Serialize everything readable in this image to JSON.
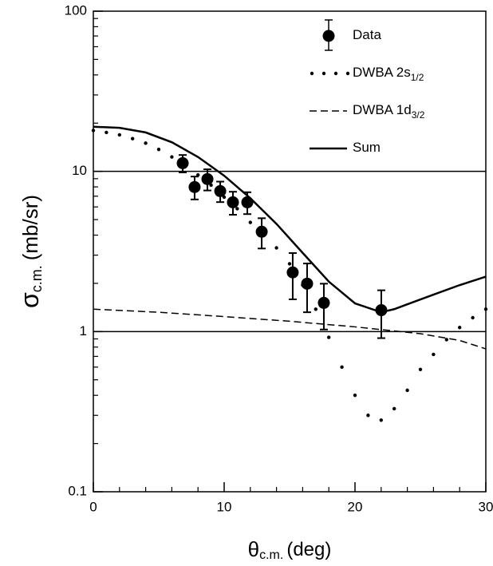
{
  "chart_data": {
    "type": "line",
    "xlabel": {
      "symbol": "θ",
      "sub": "c.m.",
      "unit": "(deg)"
    },
    "ylabel": {
      "symbol": "σ",
      "sub": "c.m.",
      "unit": "(mb/sr)"
    },
    "xlim": [
      0,
      30
    ],
    "xticks": [
      0,
      10,
      20,
      30
    ],
    "xminorticks": [
      2,
      4,
      6,
      8,
      12,
      14,
      16,
      18,
      22,
      24,
      26,
      28
    ],
    "ylim": [
      0.1,
      100
    ],
    "yticks": [
      0.1,
      1,
      10,
      100
    ],
    "ylog": true,
    "yminorticks": [
      0.2,
      0.3,
      0.4,
      0.5,
      0.6,
      0.7,
      0.8,
      0.9,
      2,
      3,
      4,
      5,
      6,
      7,
      8,
      9,
      20,
      30,
      40,
      50,
      60,
      70,
      80,
      90
    ],
    "grid": true,
    "legend": "upper right",
    "series": [
      {
        "name": "Data",
        "style": "errorbar",
        "color": "#000000",
        "x": [
          6.83,
          7.74,
          8.72,
          9.7,
          10.67,
          11.77,
          12.87,
          15.24,
          16.34,
          17.62,
          22.01
        ],
        "values": [
          11.25,
          7.98,
          8.95,
          7.53,
          6.41,
          6.41,
          4.2,
          2.34,
          1.99,
          1.51,
          1.36
        ],
        "errors": [
          1.4,
          1.3,
          1.35,
          1.1,
          1.05,
          1.0,
          0.9,
          0.75,
          0.67,
          0.48,
          0.45
        ]
      },
      {
        "name": "DWBA 2s",
        "name_sub": "1/2",
        "style": "dots",
        "color": "#000000",
        "x": [
          0,
          1,
          2,
          3,
          4,
          5,
          6,
          7,
          8,
          9,
          10,
          11,
          12,
          13,
          14,
          15,
          16,
          17,
          18,
          19,
          20,
          21,
          22,
          23,
          24,
          25,
          26,
          27,
          28,
          29,
          30
        ],
        "values": [
          18.0,
          17.5,
          16.9,
          16.0,
          15.0,
          13.7,
          12.3,
          11.0,
          9.5,
          8.2,
          6.9,
          5.85,
          4.8,
          4.2,
          3.33,
          2.65,
          1.95,
          1.38,
          0.92,
          0.6,
          0.4,
          0.3,
          0.28,
          0.33,
          0.43,
          0.58,
          0.72,
          0.89,
          1.06,
          1.22,
          1.38
        ]
      },
      {
        "name": "DWBA 1d",
        "name_sub": "3/2",
        "style": "dashed",
        "color": "#000000",
        "x": [
          0,
          5,
          10,
          15,
          20,
          25,
          28,
          30
        ],
        "values": [
          1.38,
          1.32,
          1.24,
          1.16,
          1.07,
          0.97,
          0.88,
          0.78
        ]
      },
      {
        "name": "Sum",
        "style": "solid",
        "color": "#000000",
        "x": [
          0,
          2,
          4,
          6,
          8,
          10,
          12,
          14,
          16,
          18,
          20,
          22,
          23,
          24,
          26,
          28,
          30
        ],
        "values": [
          19.0,
          18.7,
          17.5,
          15.2,
          12.3,
          9.4,
          6.8,
          4.7,
          3.1,
          2.05,
          1.5,
          1.32,
          1.38,
          1.48,
          1.7,
          1.95,
          2.2
        ]
      }
    ]
  }
}
